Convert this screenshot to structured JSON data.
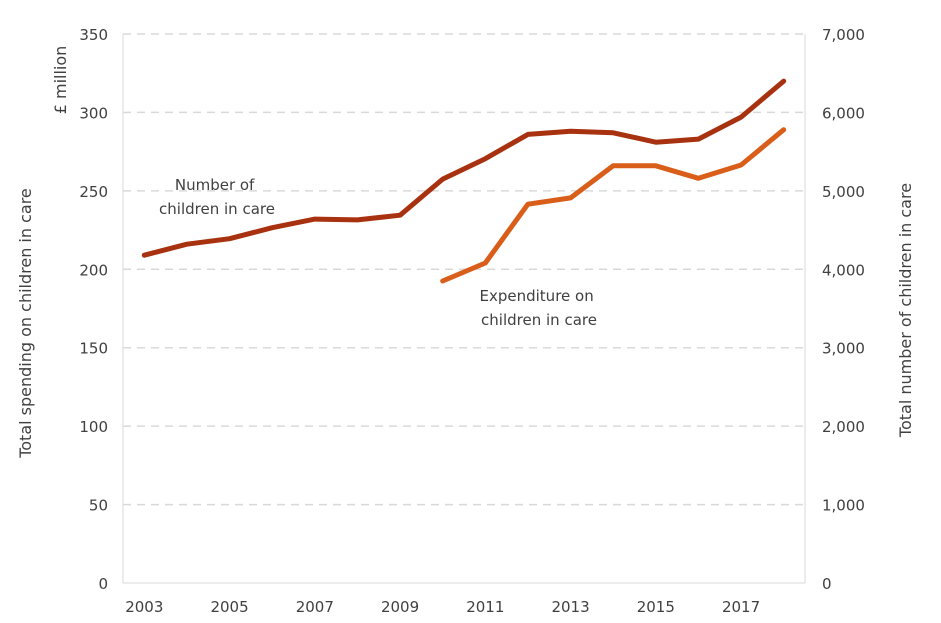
{
  "chart_data": {
    "type": "line",
    "title": "",
    "categories": [
      "2003",
      "2004",
      "2005",
      "2006",
      "2007",
      "2008",
      "2009",
      "2010",
      "2011",
      "2012",
      "2013",
      "2014",
      "2015",
      "2016",
      "2017",
      "2018"
    ],
    "x_tick_labels": [
      "2003",
      "2005",
      "2007",
      "2009",
      "2011",
      "2013",
      "2015",
      "2017"
    ],
    "y_left": {
      "label": "Total spending on children in care",
      "unit_label": "£ million",
      "ylim": [
        0,
        350
      ],
      "ticks": [
        "0",
        "50",
        "100",
        "150",
        "200",
        "250",
        "300",
        "350"
      ]
    },
    "y_right": {
      "label": "Total number of children in care",
      "ylim": [
        0,
        7000
      ],
      "ticks": [
        "0",
        "1,000",
        "2,000",
        "3,000",
        "4,000",
        "5,000",
        "6,000",
        "7,000"
      ]
    },
    "grid": true,
    "legend": "none (inline annotations)",
    "series": [
      {
        "name": "Number of children in care",
        "annotation": [
          "Number of",
          "children in care"
        ],
        "axis": "right",
        "color": "#A8320F",
        "values": [
          4180,
          4320,
          4390,
          4530,
          4640,
          4630,
          4690,
          5150,
          5410,
          5720,
          5760,
          5740,
          5620,
          5660,
          5940,
          6400
        ]
      },
      {
        "name": "Expenditure on children in care",
        "annotation": [
          "Expenditure on",
          "children in care"
        ],
        "axis": "left",
        "color": "#D95E1A",
        "values": [
          null,
          null,
          null,
          null,
          null,
          null,
          null,
          192.5,
          204,
          241.5,
          245.5,
          266,
          266,
          258,
          266.5,
          289
        ]
      }
    ]
  }
}
